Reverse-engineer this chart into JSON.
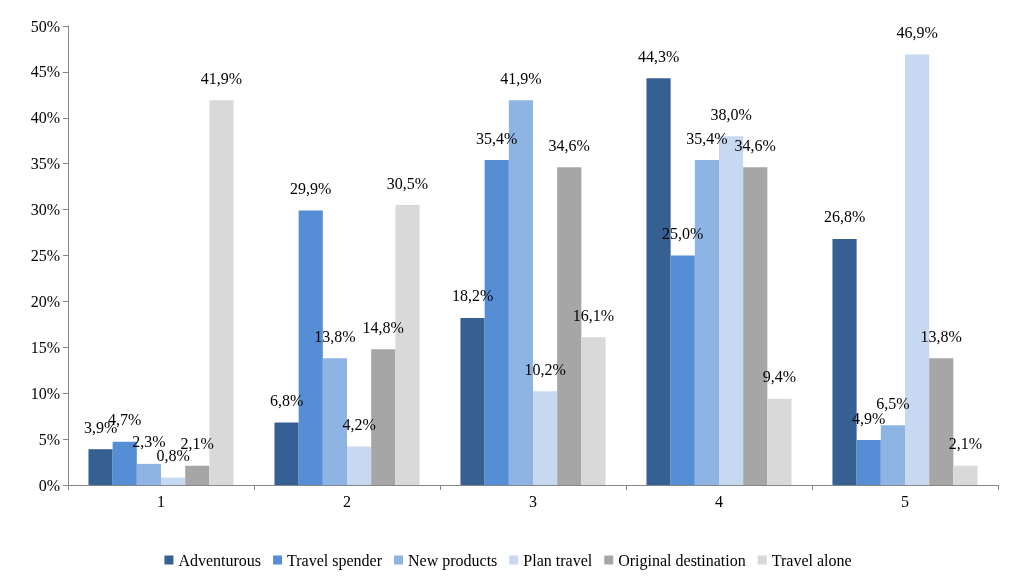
{
  "chart_data": {
    "type": "bar",
    "categories": [
      "1",
      "2",
      "3",
      "4",
      "5"
    ],
    "series": [
      {
        "name": "Adventurous",
        "color": "#366092",
        "values": [
          3.9,
          6.8,
          18.2,
          44.3,
          26.8
        ],
        "value_labels": [
          "3,9%",
          "6,8%",
          "18,2%",
          "44,3%",
          "26,8%"
        ]
      },
      {
        "name": "Travel spender",
        "color": "#558ed5",
        "values": [
          4.7,
          29.9,
          35.4,
          25.0,
          4.9
        ],
        "value_labels": [
          "4,7%",
          "29,9%",
          "35,4%",
          "25,0%",
          "4,9%"
        ]
      },
      {
        "name": "New products",
        "color": "#8eb4e3",
        "values": [
          2.3,
          13.8,
          41.9,
          35.4,
          6.5
        ],
        "value_labels": [
          "2,3%",
          "13,8%",
          "41,9%",
          "35,4%",
          "6,5%"
        ]
      },
      {
        "name": "Plan travel",
        "color": "#c6d9f1",
        "values": [
          0.8,
          4.2,
          10.2,
          38.0,
          46.9
        ],
        "value_labels": [
          "0,8%",
          "4,2%",
          "10,2%",
          "38,0%",
          "46,9%"
        ]
      },
      {
        "name": "Original destination",
        "color": "#a6a6a6",
        "values": [
          2.1,
          14.8,
          34.6,
          34.6,
          13.8
        ],
        "value_labels": [
          "2,1%",
          "14,8%",
          "34,6%",
          "34,6%",
          "13,8%"
        ]
      },
      {
        "name": "Travel alone",
        "color": "#d9d9d9",
        "values": [
          41.9,
          30.5,
          16.1,
          9.4,
          2.1
        ],
        "value_labels": [
          "41,9%",
          "30,5%",
          "16,1%",
          "9,4%",
          "2,1%"
        ]
      }
    ],
    "ylim": [
      0,
      50
    ],
    "yticks": [
      {
        "value": 0,
        "label": "0%"
      },
      {
        "value": 5,
        "label": "5%"
      },
      {
        "value": 10,
        "label": "10%"
      },
      {
        "value": 15,
        "label": "15%"
      },
      {
        "value": 20,
        "label": "20%"
      },
      {
        "value": 25,
        "label": "25%"
      },
      {
        "value": 30,
        "label": "30%"
      },
      {
        "value": 35,
        "label": "35%"
      },
      {
        "value": 40,
        "label": "40%"
      },
      {
        "value": 45,
        "label": "45%"
      },
      {
        "value": 50,
        "label": "50%"
      }
    ],
    "grid": false,
    "legend": "bottom"
  }
}
